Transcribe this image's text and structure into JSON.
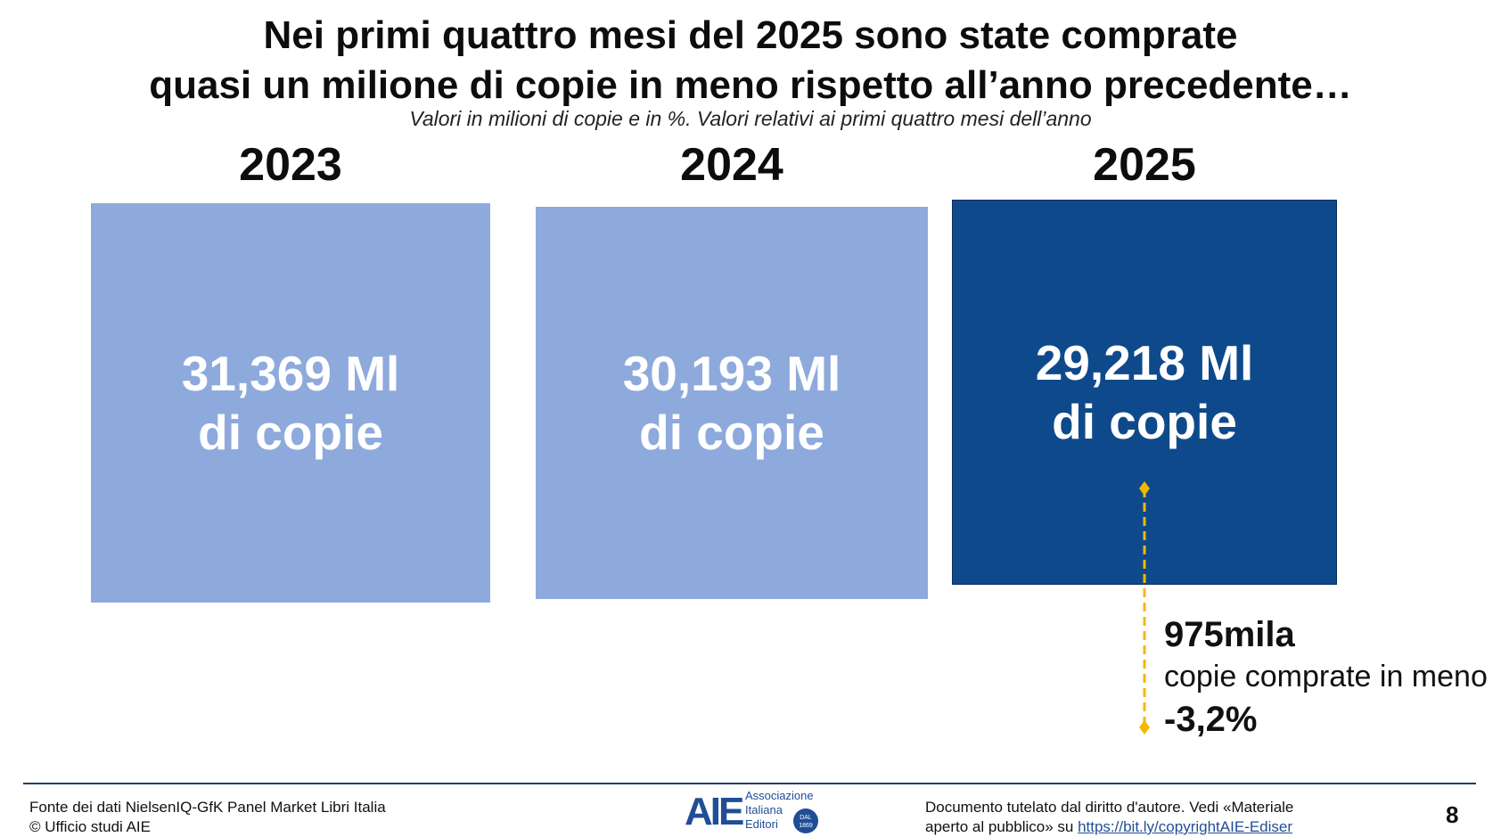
{
  "title": {
    "line1": "Nei primi quattro mesi del 2025 sono state comprate",
    "line2": "quasi un milione di copie in meno rispetto all’anno precedente…"
  },
  "subtitle": "Valori in milioni di copie e in %. Valori relativi ai primi quattro mesi dell’anno",
  "chart_data": {
    "type": "bar",
    "categories": [
      "2023",
      "2024",
      "2025"
    ],
    "values": [
      31.369,
      30.193,
      29.218
    ],
    "unit": "milioni di copie",
    "value_labels": [
      {
        "line1": "31,369 Ml",
        "line2": "di copie"
      },
      {
        "line1": "30,193 Ml",
        "line2": "di copie"
      },
      {
        "line1": "29,218 Ml",
        "line2": "di copie"
      }
    ],
    "colors": [
      "#8eaadc",
      "#8eaadc",
      "#0e4a8b"
    ],
    "annotation": {
      "amount": "975mila",
      "description": "copie comprate in meno",
      "percent": "-3,2%",
      "arrow_color": "#f5b800"
    }
  },
  "footer": {
    "source_line1": "Fonte dei dati NielsenIQ-GfK Panel Market Libri Italia",
    "source_line2": "© Ufficio studi AIE",
    "logo": {
      "mark": "AIE",
      "name_line1": "Associazione",
      "name_line2": "Italiana",
      "name_line3": "Editori",
      "seal_line1": "DAL",
      "seal_line2": "1869"
    },
    "copyright_line1": "Documento tutelato dal diritto d'autore. Vedi «Materiale",
    "copyright_line2_prefix": "aperto al pubblico» su",
    "copyright_link": "https://bit.ly/copyrightAIE-Ediser",
    "page_number": "8"
  }
}
